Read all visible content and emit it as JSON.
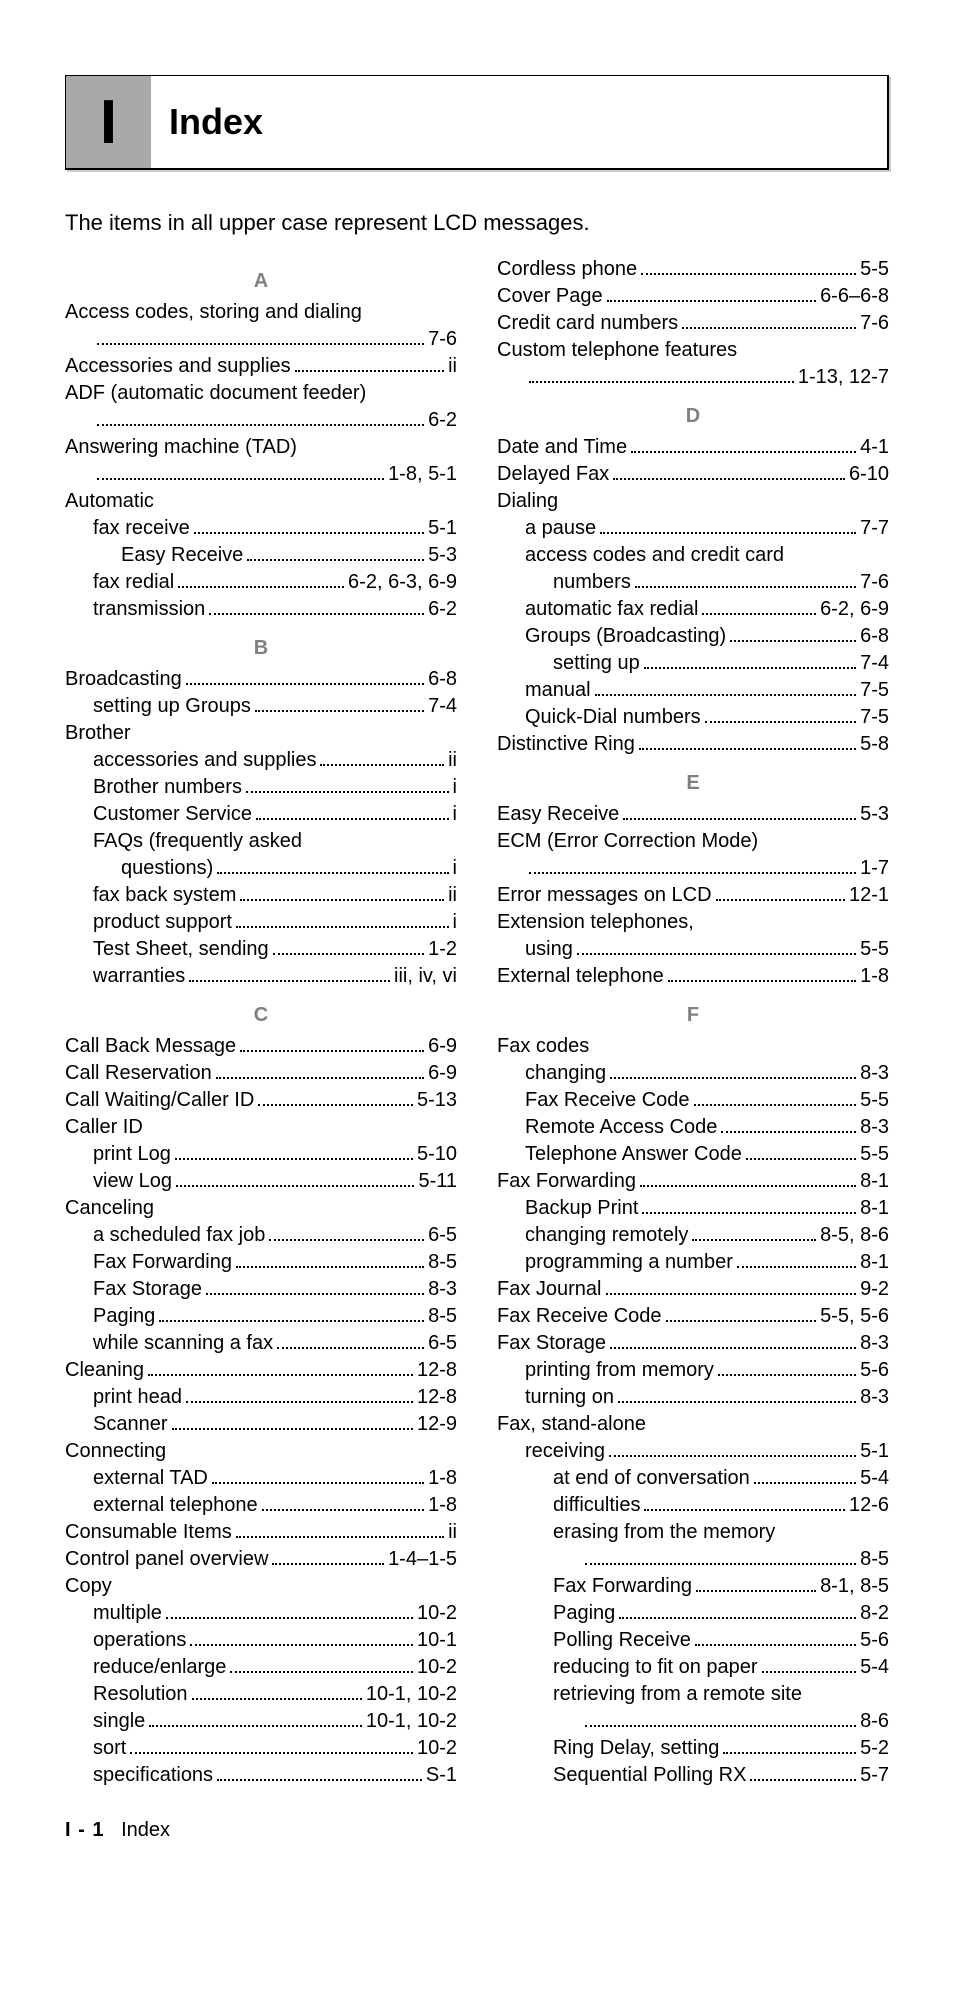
{
  "header": {
    "letter": "I",
    "title": "Index"
  },
  "intro": "The items in all upper case represent LCD messages.",
  "footer": {
    "page_num": "I - 1",
    "section": "Index"
  },
  "colors": {
    "gray_band": "#a9a9a9",
    "letter_gray": "#808080"
  },
  "sections": [
    {
      "letter": "A",
      "entries": [
        {
          "text": "Access codes, storing and dialing",
          "page": "",
          "indent": 0
        },
        {
          "text": "",
          "page": "7-6",
          "indent": 1,
          "leader_only": true
        },
        {
          "text": "Accessories and supplies",
          "page": "ii",
          "indent": 0
        },
        {
          "text": "ADF (automatic document feeder)",
          "page": "",
          "indent": 0
        },
        {
          "text": "",
          "page": "6-2",
          "indent": 1,
          "leader_only": true
        },
        {
          "text": "Answering machine (TAD)",
          "page": "",
          "indent": 0
        },
        {
          "text": "",
          "page": "1-8, 5-1",
          "indent": 1,
          "leader_only": true
        },
        {
          "text": "Automatic",
          "page": "",
          "indent": 0,
          "no_page": true
        },
        {
          "text": "fax receive",
          "page": "5-1",
          "indent": 1
        },
        {
          "text": "Easy Receive",
          "page": "5-3",
          "indent": 2
        },
        {
          "text": "fax redial",
          "page": "6-2, 6-3, 6-9",
          "indent": 1
        },
        {
          "text": "transmission",
          "page": "6-2",
          "indent": 1
        }
      ]
    },
    {
      "letter": "B",
      "entries": [
        {
          "text": "Broadcasting",
          "page": "6-8",
          "indent": 0
        },
        {
          "text": "setting up Groups",
          "page": "7-4",
          "indent": 1
        },
        {
          "text": "Brother",
          "page": "",
          "indent": 0,
          "no_page": true
        },
        {
          "text": "accessories and supplies",
          "page": "ii",
          "indent": 1
        },
        {
          "text": "Brother numbers",
          "page": "i",
          "indent": 1
        },
        {
          "text": "Customer Service",
          "page": "i",
          "indent": 1
        },
        {
          "text": "FAQs (frequently asked",
          "page": "",
          "indent": 1,
          "no_page": true
        },
        {
          "text": "questions)",
          "page": "i",
          "indent": 2
        },
        {
          "text": "fax back system",
          "page": "ii",
          "indent": 1
        },
        {
          "text": "product support",
          "page": "i",
          "indent": 1
        },
        {
          "text": "Test Sheet, sending",
          "page": "1-2",
          "indent": 1
        },
        {
          "text": "warranties",
          "page": "iii, iv, vi",
          "indent": 1
        }
      ]
    },
    {
      "letter": "C",
      "entries": [
        {
          "text": "Call Back Message",
          "page": "6-9",
          "indent": 0
        },
        {
          "text": "Call Reservation",
          "page": "6-9",
          "indent": 0
        },
        {
          "text": "Call Waiting/Caller ID",
          "page": "5-13",
          "indent": 0
        },
        {
          "text": "Caller ID",
          "page": "",
          "indent": 0,
          "no_page": true
        },
        {
          "text": "print Log",
          "page": "5-10",
          "indent": 1
        },
        {
          "text": "view Log",
          "page": "5-11",
          "indent": 1
        },
        {
          "text": "Canceling",
          "page": "",
          "indent": 0,
          "no_page": true
        },
        {
          "text": "a scheduled fax job",
          "page": "6-5",
          "indent": 1
        },
        {
          "text": "Fax Forwarding",
          "page": "8-5",
          "indent": 1
        },
        {
          "text": "Fax Storage",
          "page": "8-3",
          "indent": 1
        },
        {
          "text": "Paging",
          "page": "8-5",
          "indent": 1
        },
        {
          "text": "while scanning a fax",
          "page": "6-5",
          "indent": 1
        },
        {
          "text": "Cleaning",
          "page": "12-8",
          "indent": 0
        },
        {
          "text": "print head",
          "page": "12-8",
          "indent": 1
        },
        {
          "text": "Scanner",
          "page": "12-9",
          "indent": 1
        },
        {
          "text": "Connecting",
          "page": "",
          "indent": 0,
          "no_page": true
        },
        {
          "text": "external TAD",
          "page": "1-8",
          "indent": 1
        },
        {
          "text": "external telephone",
          "page": "1-8",
          "indent": 1
        },
        {
          "text": "Consumable Items",
          "page": "ii",
          "indent": 0
        },
        {
          "text": "Control panel overview",
          "page": "1-4–1-5",
          "indent": 0
        },
        {
          "text": "Copy",
          "page": "",
          "indent": 0,
          "no_page": true
        },
        {
          "text": "multiple",
          "page": "10-2",
          "indent": 1
        },
        {
          "text": "operations",
          "page": "10-1",
          "indent": 1
        },
        {
          "text": "reduce/enlarge",
          "page": "10-2",
          "indent": 1
        },
        {
          "text": "Resolution",
          "page": "10-1, 10-2",
          "indent": 1
        },
        {
          "text": "single",
          "page": "10-1, 10-2",
          "indent": 1
        },
        {
          "text": "sort",
          "page": "10-2",
          "indent": 1
        },
        {
          "text": "specifications",
          "page": "S-1",
          "indent": 1
        },
        {
          "text": "Cordless phone",
          "page": "5-5",
          "indent": 0
        },
        {
          "text": "Cover Page",
          "page": "6-6–6-8",
          "indent": 0
        },
        {
          "text": "Credit card numbers",
          "page": "7-6",
          "indent": 0
        },
        {
          "text": "Custom telephone features",
          "page": "",
          "indent": 0
        },
        {
          "text": "",
          "page": "1-13, 12-7",
          "indent": 1,
          "leader_only": true
        }
      ]
    },
    {
      "letter": "D",
      "entries": [
        {
          "text": "Date and Time",
          "page": "4-1",
          "indent": 0
        },
        {
          "text": "Delayed Fax",
          "page": "6-10",
          "indent": 0
        },
        {
          "text": "Dialing",
          "page": "",
          "indent": 0,
          "no_page": true
        },
        {
          "text": "a pause",
          "page": "7-7",
          "indent": 1
        },
        {
          "text": "access codes and credit card",
          "page": "",
          "indent": 1,
          "no_page": true
        },
        {
          "text": "numbers",
          "page": "7-6",
          "indent": 2
        },
        {
          "text": "automatic fax redial",
          "page": "6-2, 6-9",
          "indent": 1
        },
        {
          "text": "Groups (Broadcasting)",
          "page": "6-8",
          "indent": 1
        },
        {
          "text": "setting up",
          "page": "7-4",
          "indent": 2
        },
        {
          "text": "manual",
          "page": "7-5",
          "indent": 1
        },
        {
          "text": "Quick-Dial numbers",
          "page": "7-5",
          "indent": 1
        },
        {
          "text": "Distinctive Ring",
          "page": "5-8",
          "indent": 0
        }
      ]
    },
    {
      "letter": "E",
      "entries": [
        {
          "text": "Easy Receive",
          "page": "5-3",
          "indent": 0
        },
        {
          "text": "ECM (Error Correction Mode)",
          "page": "",
          "indent": 0
        },
        {
          "text": "",
          "page": "1-7",
          "indent": 1,
          "leader_only": true
        },
        {
          "text": "Error messages on LCD",
          "page": "12-1",
          "indent": 0
        },
        {
          "text": "Extension telephones,",
          "page": "",
          "indent": 0,
          "no_page": true
        },
        {
          "text": "using",
          "page": "5-5",
          "indent": 1
        },
        {
          "text": "External telephone",
          "page": "1-8",
          "indent": 0
        }
      ]
    },
    {
      "letter": "F",
      "entries": [
        {
          "text": "Fax codes",
          "page": "",
          "indent": 0,
          "no_page": true
        },
        {
          "text": "changing",
          "page": "8-3",
          "indent": 1
        },
        {
          "text": "Fax Receive Code",
          "page": "5-5",
          "indent": 1
        },
        {
          "text": "Remote Access Code",
          "page": "8-3",
          "indent": 1
        },
        {
          "text": "Telephone Answer Code",
          "page": "5-5",
          "indent": 1
        },
        {
          "text": "Fax Forwarding",
          "page": "8-1",
          "indent": 0
        },
        {
          "text": "Backup Print",
          "page": "8-1",
          "indent": 1
        },
        {
          "text": "changing remotely",
          "page": "8-5, 8-6",
          "indent": 1
        },
        {
          "text": "programming a number",
          "page": "8-1",
          "indent": 1
        },
        {
          "text": "Fax Journal",
          "page": "9-2",
          "indent": 0
        },
        {
          "text": "Fax Receive Code",
          "page": "5-5, 5-6",
          "indent": 0
        },
        {
          "text": "Fax Storage",
          "page": "8-3",
          "indent": 0
        },
        {
          "text": "printing from memory",
          "page": "5-6",
          "indent": 1
        },
        {
          "text": "turning on",
          "page": "8-3",
          "indent": 1
        },
        {
          "text": "Fax, stand-alone",
          "page": "",
          "indent": 0,
          "no_page": true
        },
        {
          "text": "receiving",
          "page": "5-1",
          "indent": 1
        },
        {
          "text": "at end of conversation",
          "page": "5-4",
          "indent": 2
        },
        {
          "text": "difficulties",
          "page": "12-6",
          "indent": 2
        },
        {
          "text": "erasing from the memory",
          "page": "",
          "indent": 2
        },
        {
          "text": "",
          "page": "8-5",
          "indent": 3,
          "leader_only": true
        },
        {
          "text": "Fax Forwarding",
          "page": "8-1, 8-5",
          "indent": 2
        },
        {
          "text": "Paging",
          "page": "8-2",
          "indent": 2
        },
        {
          "text": "Polling Receive",
          "page": "5-6",
          "indent": 2
        },
        {
          "text": "reducing to fit on paper",
          "page": "5-4",
          "indent": 2
        },
        {
          "text": "retrieving from a remote site",
          "page": "",
          "indent": 2
        },
        {
          "text": "",
          "page": "8-6",
          "indent": 3,
          "leader_only": true
        },
        {
          "text": "Ring Delay, setting",
          "page": "5-2",
          "indent": 2
        },
        {
          "text": "Sequential Polling RX",
          "page": "5-7",
          "indent": 2
        }
      ]
    }
  ]
}
